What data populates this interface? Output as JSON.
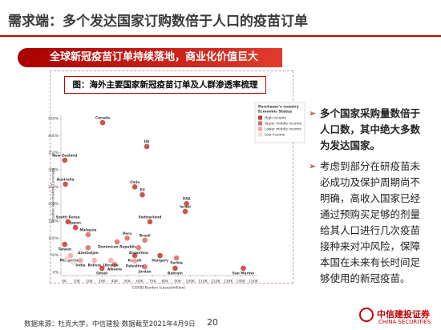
{
  "slide": {
    "title": "需求端：多个发达国家订购数倍于人口的疫苗订单",
    "banner": "全球新冠疫苗订单持续落地，商业化价值巨大",
    "caption": "图：海外主要国家新冠疫苗订单及人群渗透率梳理",
    "bullets": [
      "多个国家采购量数倍于人口数，其中绝大多数为发达国家。",
      "考虑到部分在研疫苗未必成功及保护周期尚不明确，高收入国家已经通过预购买足够的剂量给其人口进行几次疫苗接种来对冲风险，保障本国在未来有长时间足够使用的新冠疫苗。"
    ],
    "source": "数据来源：杜克大学，中信建投  数据截至2021年4月9日",
    "page": "20",
    "logo": "中信建投证券",
    "logo_en": "CHINA SECURITIES"
  },
  "chart_data": {
    "type": "scatter",
    "x_label": "COVID Burden (cases/million)",
    "y_label": "Possible Vaccination Coverage",
    "legend_title": [
      "Purchaser's country",
      "Economic Status"
    ],
    "xlim": [
      0,
      150000
    ],
    "xticks": [
      {
        "value": 0,
        "label": "0K"
      },
      {
        "value": 10000,
        "label": "10K"
      },
      {
        "value": 20000,
        "label": "20K"
      },
      {
        "value": 30000,
        "label": "30K"
      },
      {
        "value": 40000,
        "label": "40K"
      },
      {
        "value": 50000,
        "label": "50K"
      },
      {
        "value": 60000,
        "label": "60K"
      },
      {
        "value": 70000,
        "label": "70K"
      },
      {
        "value": 80000,
        "label": "80K"
      },
      {
        "value": 90000,
        "label": "90K"
      },
      {
        "value": 100000,
        "label": "100K"
      },
      {
        "value": 110000,
        "label": "110K"
      },
      {
        "value": 120000,
        "label": "120K"
      },
      {
        "value": 130000,
        "label": "130K"
      },
      {
        "value": 140000,
        "label": "140K"
      },
      {
        "value": 150000,
        "label": "150K"
      }
    ],
    "ylim": [
      0,
      450
    ],
    "yticks": [
      {
        "value": 0,
        "label": "0%"
      },
      {
        "value": 50,
        "label": "50%"
      },
      {
        "value": 100,
        "label": "100%"
      },
      {
        "value": 150,
        "label": "150%"
      },
      {
        "value": 200,
        "label": "200%"
      },
      {
        "value": 250,
        "label": "250%"
      },
      {
        "value": 300,
        "label": "300%"
      },
      {
        "value": 350,
        "label": "350%"
      },
      {
        "value": 400,
        "label": "400%"
      },
      {
        "value": 450,
        "label": "450%"
      }
    ],
    "grid": false,
    "series": [
      {
        "name": "High income",
        "color": "#c0392b",
        "labels": [
          "Canada",
          "UK",
          "New Zealand",
          "Australia",
          "Chile",
          "EU",
          "USA",
          "Israel",
          "South Korea",
          "Japan",
          "Switzerland",
          "Taiwan",
          "Kuwait",
          "Hungary",
          "Bahrain",
          "Oman",
          "San Marino"
        ],
        "x": [
          30500,
          65500,
          500,
          1000,
          56000,
          62000,
          97000,
          96000,
          3000,
          9000,
          68000,
          500,
          56000,
          76000,
          88000,
          30000,
          142000
        ],
        "values": [
          438,
          368,
          328,
          258,
          250,
          227,
          201,
          178,
          148,
          131,
          148,
          82,
          49,
          49,
          12,
          12,
          12
        ]
      },
      {
        "name": "Upper middle income",
        "color": "#e06666",
        "labels": [
          "Malaysia",
          "Peru",
          "Dominican Republic",
          "Brazil",
          "Azerbaijan",
          "Argentina",
          "Serbia",
          "Albania",
          "Jordan"
        ],
        "x": [
          19000,
          50000,
          42000,
          64000,
          19000,
          59000,
          89000,
          40000,
          64000
        ],
        "values": [
          110,
          100,
          89,
          94,
          72,
          72,
          42,
          23,
          16
        ]
      },
      {
        "name": "Lower middle income",
        "color": "#f4a6a6",
        "labels": [
          "Philippines",
          "India",
          "Bolivia",
          "Ukraine",
          "Palestine"
        ],
        "x": [
          5000,
          13000,
          24000,
          37000,
          56000
        ],
        "values": [
          49,
          35,
          35,
          35,
          33
        ]
      },
      {
        "name": "Low income",
        "color": "#fbd5d5",
        "labels": [
          null,
          null
        ],
        "x": [
          7000,
          2000
        ],
        "values": [
          28,
          40
        ]
      }
    ]
  }
}
